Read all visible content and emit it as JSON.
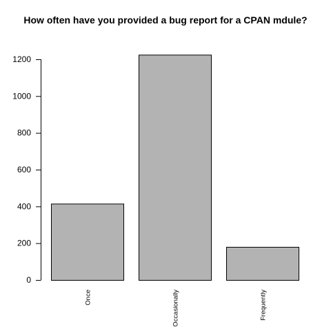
{
  "chart_data": {
    "type": "bar",
    "title": "How often have you provided a bug report for a CPAN mdule?",
    "xlabel": "",
    "ylabel": "",
    "categories": [
      "Once",
      "Occasionally",
      "Frequently"
    ],
    "values": [
      415,
      1225,
      180
    ],
    "ylim": [
      0,
      1200
    ],
    "yticks": [
      0,
      200,
      400,
      600,
      800,
      1000,
      1200
    ],
    "ytick_labels": [
      "0",
      "200",
      "400",
      "600",
      "800",
      "1000",
      "1200"
    ],
    "bar_color": "#b3b3b3",
    "bar_edge_color": "#000000",
    "grid": false,
    "legend": "none"
  }
}
